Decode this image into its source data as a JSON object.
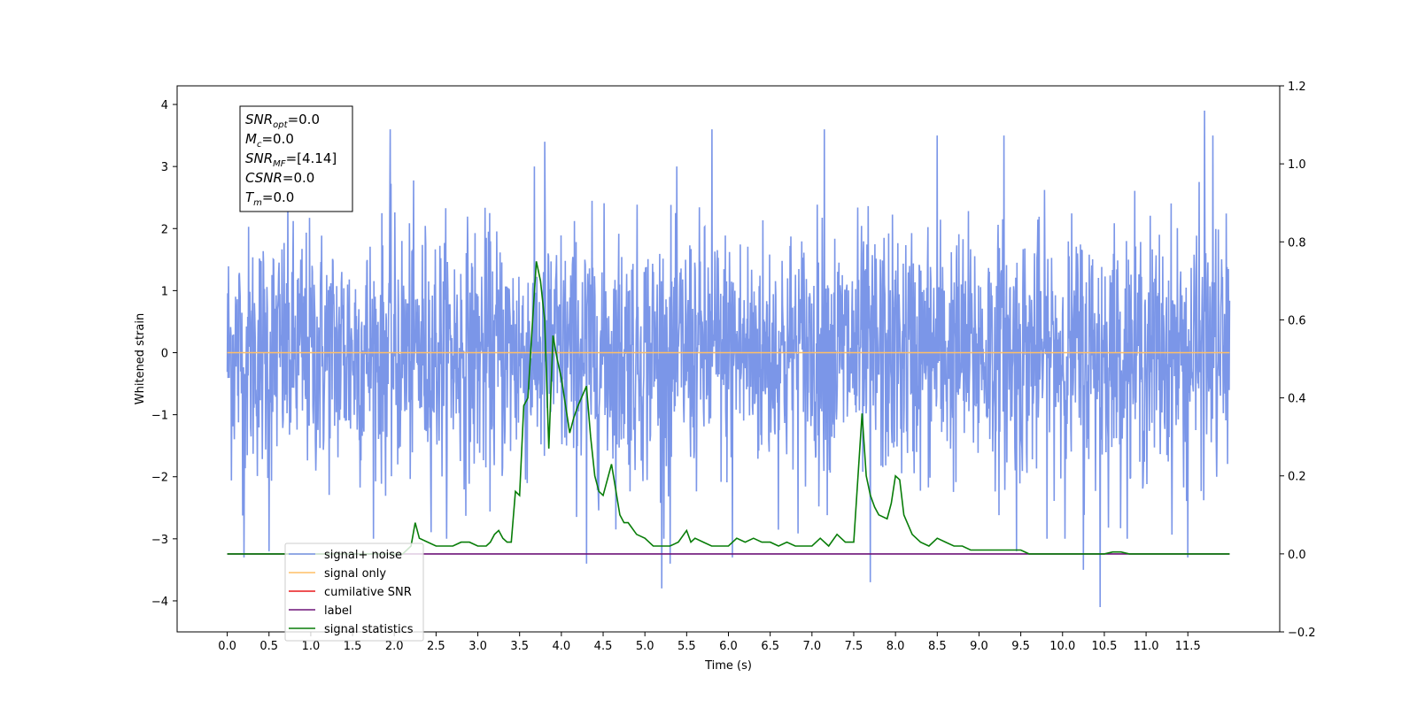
{
  "chart_data": {
    "type": "line",
    "title": "",
    "xlabel": "Time (s)",
    "ylabel": "Whitened strain",
    "xlim": [
      -0.6,
      12.6
    ],
    "ylim": [
      -4.5,
      4.3
    ],
    "y2lim": [
      -0.2,
      1.2
    ],
    "x_ticks": [
      0.0,
      0.5,
      1.0,
      1.5,
      2.0,
      2.5,
      3.0,
      3.5,
      4.0,
      4.5,
      5.0,
      5.5,
      6.0,
      6.5,
      7.0,
      7.5,
      8.0,
      8.5,
      9.0,
      9.5,
      10.0,
      10.5,
      11.0,
      11.5
    ],
    "x_tick_labels": [
      "0.0",
      "0.5",
      "1.0",
      "1.5",
      "2.0",
      "2.5",
      "3.0",
      "3.5",
      "4.0",
      "4.5",
      "5.0",
      "5.5",
      "6.0",
      "6.5",
      "7.0",
      "7.5",
      "8.0",
      "8.5",
      "9.0",
      "9.5",
      "10.0",
      "10.5",
      "11.0",
      "11.5"
    ],
    "y_ticks": [
      -4,
      -3,
      -2,
      -1,
      0,
      1,
      2,
      3,
      4
    ],
    "y_tick_labels": [
      "−4",
      "−3",
      "−2",
      "−1",
      "0",
      "1",
      "2",
      "3",
      "4"
    ],
    "y2_ticks": [
      -0.2,
      0.0,
      0.2,
      0.4,
      0.6,
      0.8,
      1.0,
      1.2
    ],
    "y2_tick_labels": [
      "−0.2",
      "0.0",
      "0.2",
      "0.4",
      "0.6",
      "0.8",
      "1.0",
      "1.2"
    ],
    "grid": false,
    "legend_position": "lower-left",
    "annotation_lines": [
      "SNR_opt=0.0",
      "M_c=0.0",
      "SNR_MF=[4.14]",
      "CSNR=0.0",
      "T_m=0.0"
    ],
    "series": [
      {
        "name": "signal+ noise",
        "color": "#7b96e8",
        "axis": "left",
        "x_range": [
          0.0,
          12.0
        ],
        "description_values": {
          "approx_std": 1.0,
          "approx_min": -4.1,
          "approx_max": 3.9
        },
        "peaks": [
          [
            0.2,
            -3.3
          ],
          [
            0.5,
            -3.2
          ],
          [
            1.95,
            3.6
          ],
          [
            3.8,
            3.4
          ],
          [
            4.3,
            -3.4
          ],
          [
            5.2,
            -3.8
          ],
          [
            5.3,
            -3.4
          ],
          [
            5.8,
            3.6
          ],
          [
            6.05,
            -3.3
          ],
          [
            7.15,
            3.6
          ],
          [
            7.7,
            -3.7
          ],
          [
            8.5,
            3.5
          ],
          [
            9.3,
            3.5
          ],
          [
            9.45,
            -3.2
          ],
          [
            10.25,
            -3.5
          ],
          [
            10.45,
            -4.1
          ],
          [
            11.5,
            -3.3
          ],
          [
            11.7,
            3.9
          ],
          [
            11.8,
            3.5
          ]
        ]
      },
      {
        "name": "signal only",
        "color": "#ffbf66",
        "axis": "left",
        "x": [
          0.0,
          12.0
        ],
        "values": [
          0.0,
          0.0
        ]
      },
      {
        "name": "cumilative SNR",
        "color": "#e8191b",
        "axis": "right",
        "x": [],
        "values": []
      },
      {
        "name": "label",
        "color": "#6e1478",
        "axis": "right",
        "x": [
          0.0,
          12.0
        ],
        "values": [
          0.0,
          0.0
        ]
      },
      {
        "name": "signal statistics",
        "color": "#087d08",
        "axis": "right",
        "x": [
          0.0,
          2.1,
          2.2,
          2.25,
          2.3,
          2.4,
          2.5,
          2.6,
          2.7,
          2.8,
          2.9,
          3.0,
          3.1,
          3.15,
          3.2,
          3.25,
          3.3,
          3.35,
          3.4,
          3.45,
          3.5,
          3.55,
          3.6,
          3.65,
          3.7,
          3.75,
          3.8,
          3.85,
          3.9,
          3.95,
          4.0,
          4.05,
          4.1,
          4.15,
          4.2,
          4.3,
          4.35,
          4.4,
          4.45,
          4.5,
          4.6,
          4.7,
          4.75,
          4.8,
          4.9,
          5.0,
          5.1,
          5.2,
          5.3,
          5.4,
          5.5,
          5.55,
          5.6,
          5.7,
          5.8,
          5.9,
          6.0,
          6.1,
          6.2,
          6.3,
          6.4,
          6.5,
          6.6,
          6.7,
          6.8,
          6.9,
          7.0,
          7.1,
          7.2,
          7.3,
          7.4,
          7.5,
          7.6,
          7.65,
          7.7,
          7.75,
          7.8,
          7.9,
          7.95,
          8.0,
          8.05,
          8.1,
          8.2,
          8.3,
          8.4,
          8.5,
          8.6,
          8.7,
          8.8,
          8.9,
          9.0,
          9.1,
          9.2,
          9.3,
          9.5,
          9.6,
          9.7,
          10.0,
          10.3,
          10.5,
          10.6,
          10.7,
          10.8,
          11.0,
          12.0
        ],
        "values": [
          0.0,
          0.0,
          0.02,
          0.08,
          0.04,
          0.03,
          0.02,
          0.02,
          0.02,
          0.03,
          0.03,
          0.02,
          0.02,
          0.03,
          0.05,
          0.06,
          0.04,
          0.03,
          0.03,
          0.16,
          0.15,
          0.38,
          0.4,
          0.58,
          0.75,
          0.7,
          0.6,
          0.27,
          0.56,
          0.5,
          0.45,
          0.38,
          0.31,
          0.35,
          0.38,
          0.43,
          0.3,
          0.2,
          0.16,
          0.15,
          0.23,
          0.1,
          0.08,
          0.08,
          0.05,
          0.04,
          0.02,
          0.02,
          0.02,
          0.03,
          0.06,
          0.03,
          0.04,
          0.03,
          0.02,
          0.02,
          0.02,
          0.04,
          0.03,
          0.04,
          0.03,
          0.03,
          0.02,
          0.03,
          0.02,
          0.02,
          0.02,
          0.04,
          0.02,
          0.05,
          0.03,
          0.03,
          0.36,
          0.2,
          0.15,
          0.12,
          0.1,
          0.09,
          0.13,
          0.2,
          0.19,
          0.1,
          0.05,
          0.03,
          0.02,
          0.04,
          0.03,
          0.02,
          0.02,
          0.01,
          0.01,
          0.01,
          0.01,
          0.01,
          0.01,
          0.0,
          0.0,
          0.0,
          0.0,
          0.0,
          0.005,
          0.005,
          0.0,
          0.0,
          0.0
        ]
      }
    ]
  }
}
